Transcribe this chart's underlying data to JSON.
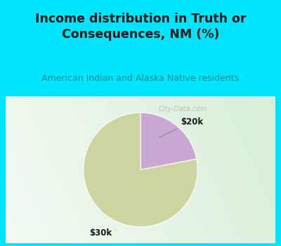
{
  "title": "Income distribution in Truth or\nConsequences, NM (%)",
  "subtitle": "American Indian and Alaska Native residents",
  "slices": [
    {
      "label": "$20k",
      "value": 22,
      "color": "#c9a8d4"
    },
    {
      "label": "$30k",
      "value": 78,
      "color": "#cdd4a0"
    }
  ],
  "title_color": "#1a1a1a",
  "subtitle_color": "#008b8b",
  "bg_top_color": "#00e5ff",
  "watermark": "City-Data.com",
  "startangle": 90
}
